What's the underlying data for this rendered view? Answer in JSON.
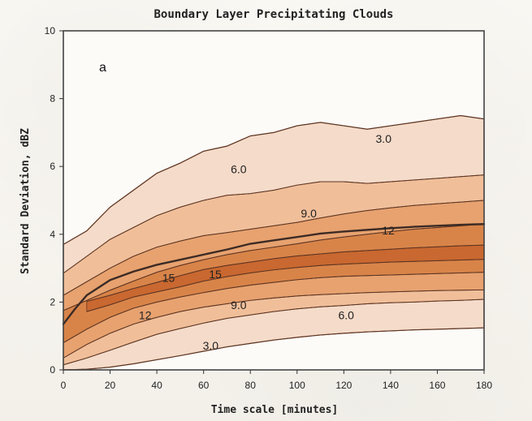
{
  "chart_data": {
    "type": "heatmap",
    "title": "Boundary Layer Precipitating Clouds",
    "panel_label": "a",
    "xlabel": "Time scale [minutes]",
    "ylabel": "Standard Deviation, dBZ",
    "xlim": [
      0,
      180
    ],
    "ylim": [
      0,
      10
    ],
    "x_ticks": [
      0,
      20,
      40,
      60,
      80,
      100,
      120,
      140,
      160,
      180
    ],
    "y_ticks": [
      0,
      2,
      4,
      6,
      8,
      10
    ],
    "contour_levels": [
      3.0,
      6.0,
      9.0,
      12.0,
      15.0
    ],
    "contour_level_labels": [
      "3.0",
      "6.0",
      "9.0",
      "12",
      "15"
    ],
    "contour_label_points": [
      {
        "label": "3.0",
        "x": 137,
        "y": 6.7
      },
      {
        "label": "6.0",
        "x": 75,
        "y": 5.8
      },
      {
        "label": "9.0",
        "x": 105,
        "y": 4.5
      },
      {
        "label": "12",
        "x": 139,
        "y": 4.0
      },
      {
        "label": "15",
        "x": 45,
        "y": 2.6
      },
      {
        "label": "15",
        "x": 65,
        "y": 2.7
      },
      {
        "label": "9.0",
        "x": 75,
        "y": 1.8
      },
      {
        "label": "12",
        "x": 35,
        "y": 1.5
      },
      {
        "label": "6.0",
        "x": 121,
        "y": 1.5
      },
      {
        "label": "3.0",
        "x": 63,
        "y": 0.6
      }
    ],
    "mean_curve": {
      "x": [
        0,
        5,
        10,
        20,
        30,
        40,
        50,
        60,
        70,
        80,
        90,
        100,
        110,
        120,
        130,
        140,
        150,
        160,
        170,
        180
      ],
      "y": [
        1.35,
        1.8,
        2.2,
        2.65,
        2.9,
        3.1,
        3.25,
        3.4,
        3.55,
        3.72,
        3.82,
        3.92,
        4.02,
        4.08,
        4.13,
        4.18,
        4.22,
        4.25,
        4.28,
        4.3
      ]
    },
    "bands": [
      {
        "level": 3.0,
        "x": [
          0,
          10,
          20,
          30,
          40,
          50,
          60,
          70,
          80,
          90,
          100,
          110,
          120,
          130,
          140,
          150,
          160,
          170,
          180
        ],
        "lower": [
          0.0,
          0.02,
          0.08,
          0.18,
          0.3,
          0.42,
          0.55,
          0.68,
          0.78,
          0.88,
          0.96,
          1.03,
          1.08,
          1.12,
          1.15,
          1.18,
          1.2,
          1.22,
          1.24
        ],
        "upper": [
          3.7,
          4.1,
          4.8,
          5.3,
          5.8,
          6.1,
          6.45,
          6.6,
          6.9,
          7.0,
          7.2,
          7.3,
          7.2,
          7.1,
          7.2,
          7.3,
          7.4,
          7.5,
          7.4
        ]
      },
      {
        "level": 6.0,
        "x": [
          0,
          10,
          20,
          30,
          40,
          50,
          60,
          70,
          80,
          90,
          100,
          110,
          120,
          130,
          140,
          150,
          160,
          170,
          180
        ],
        "lower": [
          0.15,
          0.35,
          0.58,
          0.82,
          1.05,
          1.22,
          1.38,
          1.52,
          1.62,
          1.72,
          1.8,
          1.86,
          1.9,
          1.95,
          1.98,
          2.0,
          2.03,
          2.05,
          2.08
        ],
        "upper": [
          2.85,
          3.35,
          3.85,
          4.2,
          4.55,
          4.8,
          5.0,
          5.15,
          5.2,
          5.3,
          5.45,
          5.55,
          5.55,
          5.5,
          5.55,
          5.6,
          5.65,
          5.7,
          5.75
        ]
      },
      {
        "level": 9.0,
        "x": [
          0,
          10,
          20,
          30,
          40,
          50,
          60,
          70,
          80,
          90,
          100,
          110,
          120,
          130,
          140,
          150,
          160,
          170,
          180
        ],
        "lower": [
          0.35,
          0.75,
          1.08,
          1.35,
          1.55,
          1.72,
          1.85,
          1.95,
          2.05,
          2.12,
          2.18,
          2.22,
          2.25,
          2.28,
          2.3,
          2.32,
          2.34,
          2.35,
          2.36
        ],
        "upper": [
          2.2,
          2.6,
          3.0,
          3.35,
          3.62,
          3.8,
          3.96,
          4.05,
          4.15,
          4.25,
          4.35,
          4.48,
          4.6,
          4.7,
          4.78,
          4.85,
          4.9,
          4.95,
          5.0
        ]
      },
      {
        "level": 12.0,
        "x": [
          0,
          10,
          20,
          30,
          40,
          50,
          60,
          70,
          80,
          90,
          100,
          110,
          120,
          130,
          140,
          150,
          160,
          170,
          180
        ],
        "lower": [
          0.8,
          1.2,
          1.55,
          1.82,
          2.0,
          2.15,
          2.28,
          2.4,
          2.5,
          2.58,
          2.66,
          2.72,
          2.76,
          2.78,
          2.8,
          2.82,
          2.84,
          2.86,
          2.88
        ],
        "upper": [
          1.75,
          2.05,
          2.35,
          2.62,
          2.88,
          3.08,
          3.25,
          3.4,
          3.52,
          3.62,
          3.72,
          3.83,
          3.92,
          4.0,
          4.08,
          4.15,
          4.2,
          4.25,
          4.3
        ]
      },
      {
        "level": 15.0,
        "x": [
          10,
          20,
          30,
          40,
          50,
          60,
          70,
          80,
          90,
          100,
          110,
          120,
          130,
          140,
          150,
          160,
          170,
          180
        ],
        "lower": [
          1.72,
          1.92,
          2.15,
          2.3,
          2.45,
          2.62,
          2.75,
          2.86,
          2.95,
          3.02,
          3.08,
          3.12,
          3.15,
          3.18,
          3.2,
          3.22,
          3.24,
          3.26
        ],
        "upper": [
          2.02,
          2.2,
          2.4,
          2.58,
          2.78,
          2.96,
          3.08,
          3.18,
          3.28,
          3.36,
          3.42,
          3.48,
          3.52,
          3.56,
          3.6,
          3.63,
          3.66,
          3.68
        ]
      }
    ],
    "colors": {
      "3.0": "#f5dac7",
      "6.0": "#f0be98",
      "9.0": "#e7a16d",
      "12.0": "#d88348",
      "15.0": "#c9672f"
    },
    "grid": false,
    "legend": "none"
  }
}
